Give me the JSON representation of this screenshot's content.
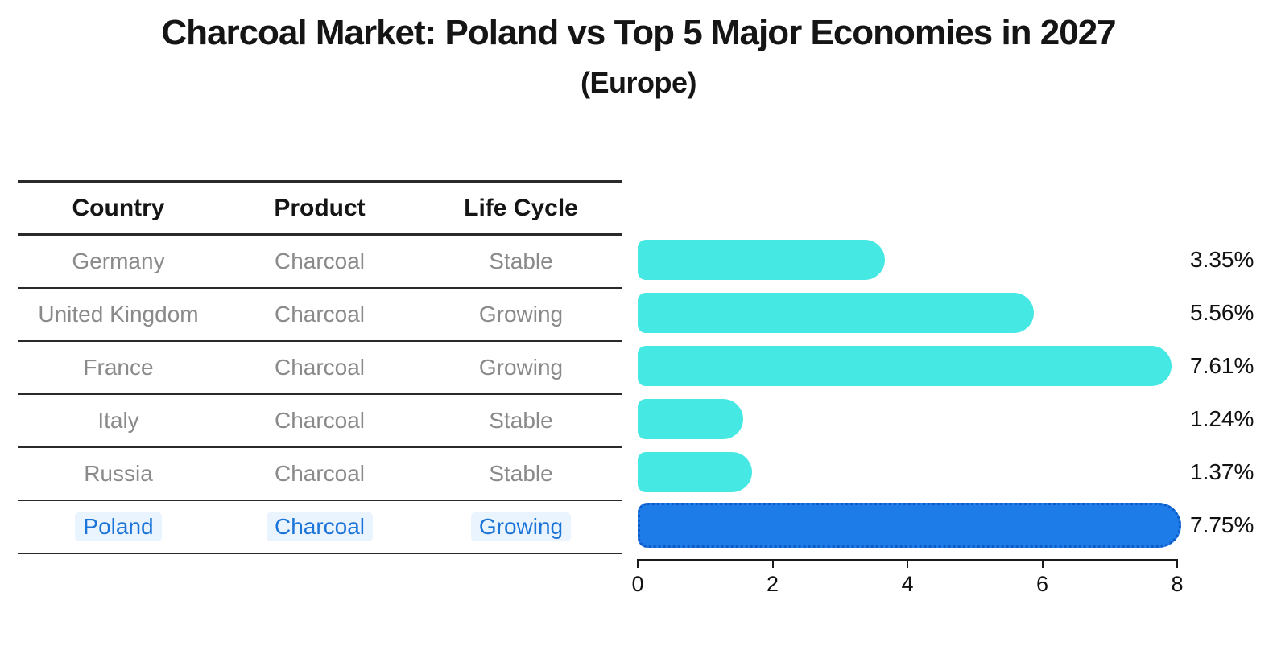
{
  "header": {
    "title": "Charcoal Market: Poland vs Top 5 Major Economies in 2027",
    "subtitle": "(Europe)"
  },
  "table": {
    "headers": {
      "country": "Country",
      "product": "Product",
      "life_cycle": "Life Cycle"
    },
    "rows": [
      {
        "country": "Germany",
        "product": "Charcoal",
        "life_cycle": "Stable",
        "highlight": false
      },
      {
        "country": "United Kingdom",
        "product": "Charcoal",
        "life_cycle": "Growing",
        "highlight": false
      },
      {
        "country": "France",
        "product": "Charcoal",
        "life_cycle": "Growing",
        "highlight": false
      },
      {
        "country": "Italy",
        "product": "Charcoal",
        "life_cycle": "Stable",
        "highlight": false
      },
      {
        "country": "Russia",
        "product": "Charcoal",
        "life_cycle": "Stable",
        "highlight": false
      },
      {
        "country": "Poland",
        "product": "Charcoal",
        "life_cycle": "Growing",
        "highlight": true
      }
    ]
  },
  "chart_data": {
    "type": "bar",
    "orientation": "horizontal",
    "title": "Charcoal Market: Poland vs Top 5 Major Economies in 2027",
    "subtitle": "(Europe)",
    "categories": [
      "Germany",
      "United Kingdom",
      "France",
      "Italy",
      "Russia",
      "Poland"
    ],
    "values": [
      3.35,
      5.56,
      7.61,
      1.24,
      1.37,
      7.75
    ],
    "value_labels": [
      "3.35%",
      "5.56%",
      "7.61%",
      "1.24%",
      "1.37%",
      "7.75%"
    ],
    "xlabel": "",
    "ylabel": "",
    "xlim": [
      0,
      8.1
    ],
    "x_tick_labels": [
      "0",
      "2",
      "4",
      "6",
      "8"
    ],
    "x_tick_values": [
      0,
      2,
      4,
      6,
      8
    ],
    "grid": false,
    "legend": "none",
    "highlight_category": "Poland",
    "colors": {
      "bar": "#46E8E4",
      "highlight_bar": "#1E7CE8",
      "highlight_bar_border": "#0E5BC8",
      "highlight_text": "#1B74D8",
      "text": "#111111",
      "muted_text": "#8A8A8A"
    }
  }
}
